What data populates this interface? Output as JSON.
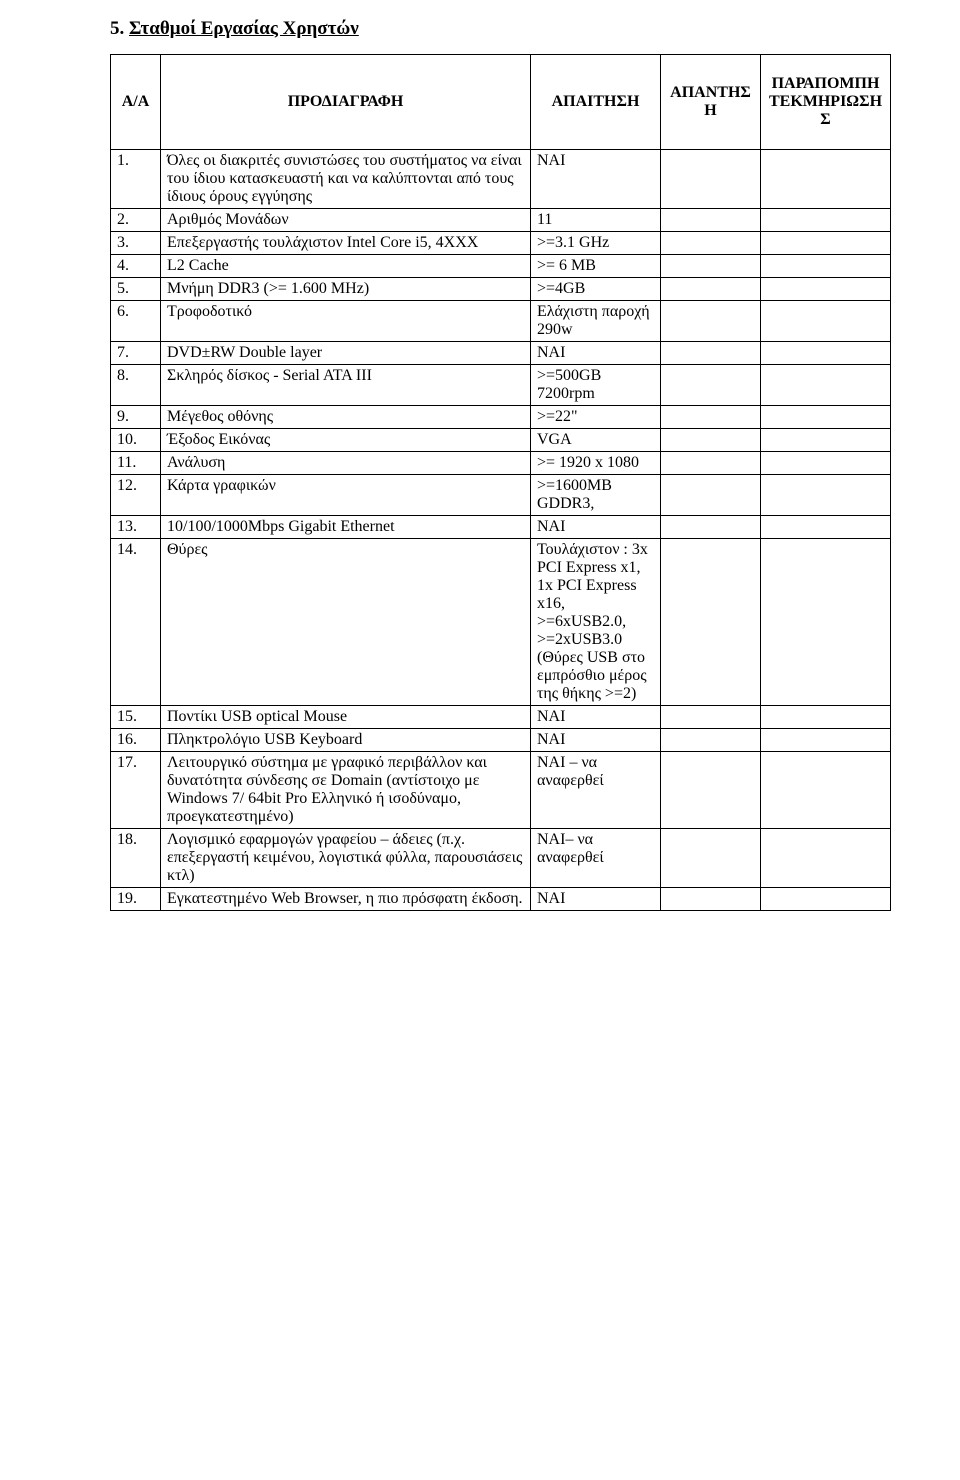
{
  "section": {
    "number": "5.",
    "title": "Σταθμοί Εργασίας Χρηστών"
  },
  "table": {
    "headers": {
      "c1": "Α/Α",
      "c2": "ΠΡΟΔΙΑΓΡΑΦΗ",
      "c3": "ΑΠΑΙΤΗΣΗ",
      "c4": "ΑΠΑΝΤΗΣΗ",
      "c5": "ΠΑΡΑΠΟΜΠΗ ΤΕΚΜΗΡΙΩΣΗΣ"
    },
    "rows": [
      {
        "idx": "1.",
        "spec": "Όλες οι διακριτές συνιστώσες του συστήματος να είναι του ίδιου κατασκευαστή και να καλύπτονται από τους ίδιους όρους εγγύησης",
        "req": "ΝΑΙ"
      },
      {
        "idx": "2.",
        "spec": "Αριθμός Μονάδων",
        "req": "11"
      },
      {
        "idx": "3.",
        "spec": "Επεξεργαστής τουλάχιστον Intel Core i5, 4XXX",
        "req": ">=3.1 GHz"
      },
      {
        "idx": "4.",
        "spec": "L2 Cache",
        "req": ">= 6 MB"
      },
      {
        "idx": "5.",
        "spec": "Μνήμη DDR3 (>= 1.600 MHz)",
        "req": ">=4GB"
      },
      {
        "idx": "6.",
        "spec": "Τροφοδοτικό",
        "req": "Ελάχιστη παροχή 290w"
      },
      {
        "idx": "7.",
        "spec": "DVD±RW Double layer",
        "req": "ΝΑΙ"
      },
      {
        "idx": "8.",
        "spec": "Σκληρός δίσκος - Serial ATA III",
        "req": ">=500GB 7200rpm"
      },
      {
        "idx": "9.",
        "spec": "Μέγεθος οθόνης",
        "req": ">=22\""
      },
      {
        "idx": "10.",
        "spec": "Έξοδος Εικόνας",
        "req": "VGA"
      },
      {
        "idx": "11.",
        "spec": "Ανάλυση",
        "req": ">= 1920 x 1080"
      },
      {
        "idx": "12.",
        "spec": "Κάρτα γραφικών",
        "req": ">=1600MB GDDR3,"
      },
      {
        "idx": "13.",
        "spec": "10/100/1000Mbps Gigabit Ethernet",
        "req": "ΝΑΙ"
      },
      {
        "idx": "14.",
        "spec": "Θύρες",
        "req": "Τουλάχιστον : 3x  PCI Express x1, 1x  PCI Express x16, >=6xUSB2.0, >=2xUSB3.0 (Θύρες USB στο εμπρόσθιο μέρος της θήκης >=2)"
      },
      {
        "idx": "15.",
        "spec": "Ποντίκι USB optical Mouse",
        "req": "ΝΑΙ"
      },
      {
        "idx": "16.",
        "spec": "Πληκτρολόγιο USB Keyboard",
        "req": "ΝΑΙ"
      },
      {
        "idx": "17.",
        "spec": "Λειτουργικό σύστημα με γραφικό περιβάλλον και δυνατότητα σύνδεσης σε Domain (αντίστοιχο με Windows 7/ 64bit Pro Ελληνικό ή ισοδύναμο, προεγκατεστημένο)",
        "req": "ΝΑΙ – να αναφερθεί"
      },
      {
        "idx": "18.",
        "spec": "Λογισμικό εφαρμογών γραφείου – άδειες (π.χ. επεξεργαστή κειμένου, λογιστικά φύλλα, παρουσιάσεις κτλ)",
        "req": "ΝΑΙ– να αναφερθεί"
      },
      {
        "idx": "19.",
        "spec": "Εγκατεστημένο Web Browser, η πιο πρόσφατη έκδοση.",
        "req": "ΝΑΙ"
      }
    ]
  }
}
